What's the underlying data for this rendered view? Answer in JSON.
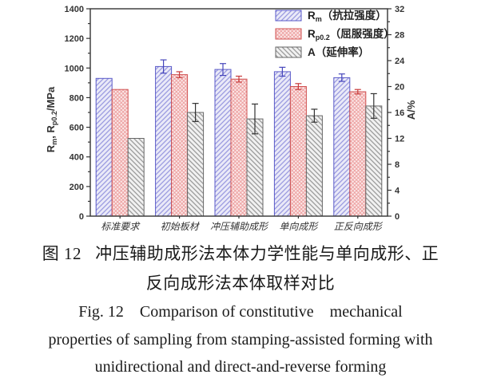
{
  "caption": {
    "zh_line1": "图 12   冲压辅助成形法本体力学性能与单向成形、正",
    "zh_line2": "反向成形法本体取样对比",
    "en_line1": "Fig. 12    Comparison of constitutive    mechanical",
    "en_line2": "properties of sampling from stamping-assisted forming with",
    "en_line3": "unidirectional and direct-and-reverse forming"
  },
  "chart_data": {
    "type": "bar",
    "title": "",
    "grid": false,
    "legend_position": "top-right-inside",
    "categories": [
      "标准要求",
      "初始板材",
      "冲压辅助成形",
      "单向成形",
      "正反向成形"
    ],
    "left_axis": {
      "label_parts": [
        {
          "t": "R"
        },
        {
          "t": "m",
          "sub": true
        },
        {
          "t": ", R"
        },
        {
          "t": "p0.2",
          "sub": true
        },
        {
          "t": "/MPa"
        }
      ],
      "min": 0,
      "max": 1400,
      "major_step": 200,
      "minor_step": 100,
      "major_ticks": [
        0,
        200,
        400,
        600,
        800,
        1000,
        1200,
        1400
      ]
    },
    "right_axis": {
      "label": "A/%",
      "min": 0,
      "max": 32,
      "major_step": 4,
      "minor_step": 2,
      "major_ticks": [
        0,
        4,
        8,
        12,
        16,
        20,
        24,
        28,
        32
      ]
    },
    "series": [
      {
        "name": "Rm",
        "legend_parts": [
          {
            "t": "R"
          },
          {
            "t": "m",
            "sub": true
          },
          {
            "t": "（抗拉强度）"
          }
        ],
        "axis": "left",
        "values": [
          930,
          1010,
          990,
          975,
          935
        ],
        "errors": [
          0,
          45,
          40,
          30,
          25
        ],
        "pattern": "diag-up",
        "edge_color": "#5a5ac8",
        "hatch_color": "#9a9ae0",
        "fill_color": "#eaeaf8",
        "error_color": "#4646bb"
      },
      {
        "name": "Rp0.2",
        "legend_parts": [
          {
            "t": "R"
          },
          {
            "t": "p0.2",
            "sub": true
          },
          {
            "t": "（屈服强度）"
          }
        ],
        "axis": "left",
        "values": [
          855,
          955,
          925,
          875,
          840
        ],
        "errors": [
          0,
          20,
          20,
          20,
          15
        ],
        "pattern": "cross-diag",
        "edge_color": "#d05050",
        "hatch_color": "#eda0a0",
        "fill_color": "#fcecec",
        "error_color": "#c83c3c"
      },
      {
        "name": "A",
        "legend_parts": [
          {
            "t": "A"
          },
          {
            "t": "（延伸率）"
          }
        ],
        "axis": "right",
        "values": [
          12.0,
          16.0,
          15.0,
          15.5,
          17.0
        ],
        "errors": [
          0,
          1.4,
          2.3,
          1.0,
          1.9
        ],
        "pattern": "diag-down",
        "edge_color": "#666666",
        "hatch_color": "#9a9a9a",
        "fill_color": "#f1f1f1",
        "error_color": "#333333"
      }
    ],
    "axis_color": "#333333",
    "tick_label_color": "#333333"
  }
}
